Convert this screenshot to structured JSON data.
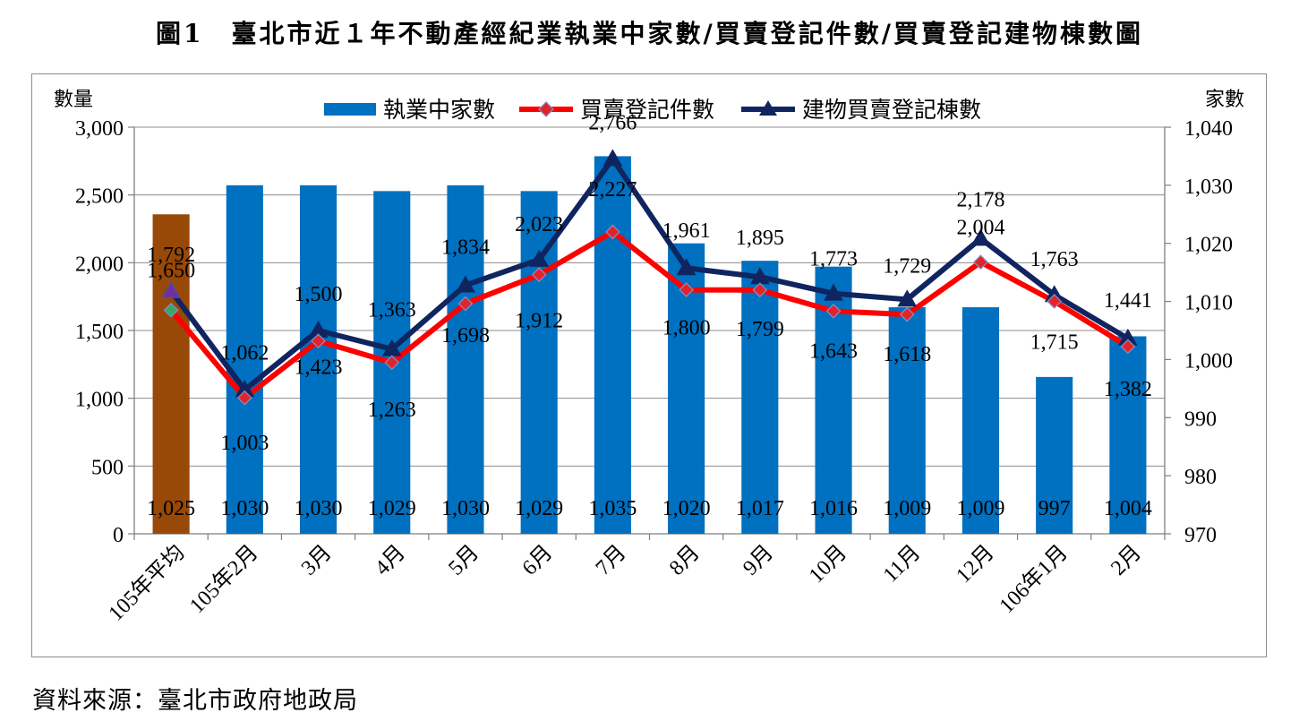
{
  "title": "圖1　臺北市近１年不動產經紀業執業中家數/買賣登記件數/買賣登記建物棟數圖",
  "source": "資料來源：臺北市政府地政局",
  "chart_data": {
    "type": "bar",
    "categories": [
      "105年平均",
      "105年2月",
      "3月",
      "4月",
      "5月",
      "6月",
      "7月",
      "8月",
      "9月",
      "10月",
      "11月",
      "12月",
      "106年1月",
      "2月"
    ],
    "left_axis": {
      "label": "數量",
      "min": 0,
      "max": 3000,
      "step": 500,
      "ticks": [
        "0",
        "500",
        "1,000",
        "1,500",
        "2,000",
        "2,500",
        "3,000"
      ]
    },
    "right_axis": {
      "label": "家數",
      "min": 970,
      "max": 1040,
      "step": 10,
      "ticks": [
        "970",
        "980",
        "990",
        "1,000",
        "1,010",
        "1,020",
        "1,030",
        "1,040"
      ]
    },
    "series": [
      {
        "name": "執業中家數",
        "type": "bar",
        "axis": "right",
        "color": "#0070c0",
        "first_color": "#984807",
        "values": [
          1025,
          1030,
          1030,
          1029,
          1030,
          1029,
          1035,
          1020,
          1017,
          1016,
          1009,
          1009,
          997,
          1004
        ],
        "labels": [
          "1,025",
          "1,030",
          "1,030",
          "1,029",
          "1,030",
          "1,029",
          "1,035",
          "1,020",
          "1,017",
          "1,016",
          "1,009",
          "1,009",
          "997",
          "1,004"
        ]
      },
      {
        "name": "買賣登記件數",
        "type": "line",
        "axis": "left",
        "color": "#ff0000",
        "marker_color": "#e0242a",
        "first_marker_color": "#33aa66",
        "values": [
          1650,
          1003,
          1423,
          1263,
          1698,
          1912,
          2227,
          1800,
          1799,
          1643,
          1618,
          2004,
          1715,
          1382
        ],
        "labels": [
          "1,650",
          "1,003",
          "1,423",
          "1,263",
          "1,698",
          "1,912",
          "2,227",
          "1,800",
          "1,799",
          "1,643",
          "1,618",
          "2,004",
          "1,715",
          "1,382"
        ]
      },
      {
        "name": "建物買賣登記棟數",
        "type": "line",
        "axis": "left",
        "color": "#10255f",
        "first_marker_color": "#7030a0",
        "values": [
          1792,
          1062,
          1500,
          1363,
          1834,
          2023,
          2766,
          1961,
          1895,
          1773,
          1729,
          2178,
          1763,
          1441
        ],
        "labels": [
          "1,792",
          "1,062",
          "1,500",
          "1,363",
          "1,834",
          "2,023",
          "2,766",
          "1,961",
          "1,895",
          "1,773",
          "1,729",
          "2,178",
          "1,763",
          "1,441"
        ]
      }
    ],
    "legend": [
      "執業中家數",
      "買賣登記件數",
      "建物買賣登記棟數"
    ],
    "legend_position": "top"
  }
}
